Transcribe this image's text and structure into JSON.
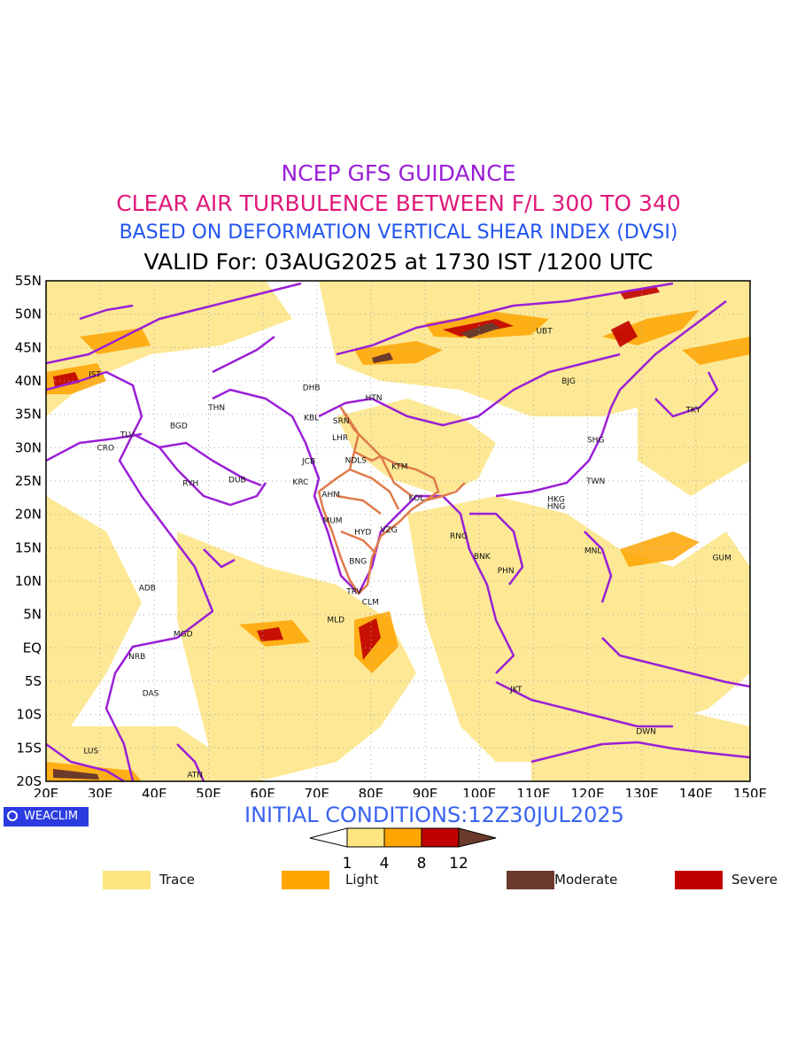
{
  "titles": {
    "line1": "NCEP GFS GUIDANCE",
    "line2": "CLEAR AIR TURBULENCE BETWEEN F/L 300 TO 340",
    "line3": "BASED ON DEFORMATION VERTICAL SHEAR INDEX (DVSI)",
    "line4": "VALID For: 03AUG2025 at 1730 IST /1200 UTC"
  },
  "colors": {
    "title1": "#9a1fd6",
    "title2": "#e0197a",
    "title3": "#2255ee",
    "boundary": "#9a1fd6",
    "india_states": "#e07a4a",
    "trace": "#fde68a",
    "light": "#ffa500",
    "severe": "#c00000",
    "moderate": "#6b3a2a"
  },
  "map": {
    "lon_range": [
      20,
      150
    ],
    "lat_range": [
      -20,
      55
    ],
    "lon_ticks": [
      "20E",
      "30E",
      "40E",
      "50E",
      "60E",
      "70E",
      "80E",
      "90E",
      "100E",
      "110E",
      "120E",
      "130E",
      "140E",
      "150E"
    ],
    "lat_ticks": [
      "55N",
      "50N",
      "45N",
      "40N",
      "35N",
      "30N",
      "25N",
      "20N",
      "15N",
      "10N",
      "5N",
      "EQ",
      "5S",
      "10S",
      "15S",
      "20S"
    ],
    "stations": [
      {
        "code": "UBT",
        "lon": 112,
        "lat": 47.5
      },
      {
        "code": "IST",
        "lon": 29,
        "lat": 41
      },
      {
        "code": "BJG",
        "lon": 116.5,
        "lat": 40
      },
      {
        "code": "DHB",
        "lon": 69,
        "lat": 39
      },
      {
        "code": "HTN",
        "lon": 80.5,
        "lat": 37.5
      },
      {
        "code": "THN",
        "lon": 51.5,
        "lat": 36
      },
      {
        "code": "KBL",
        "lon": 69,
        "lat": 34.5
      },
      {
        "code": "SRN",
        "lon": 74.5,
        "lat": 34
      },
      {
        "code": "TKY",
        "lon": 139.5,
        "lat": 35.7
      },
      {
        "code": "TLV",
        "lon": 35,
        "lat": 32
      },
      {
        "code": "BGD",
        "lon": 44.5,
        "lat": 33.3
      },
      {
        "code": "LHR",
        "lon": 74.3,
        "lat": 31.5
      },
      {
        "code": "SHG",
        "lon": 121.5,
        "lat": 31.2
      },
      {
        "code": "CRO",
        "lon": 31,
        "lat": 30
      },
      {
        "code": "JCB",
        "lon": 68.5,
        "lat": 28
      },
      {
        "code": "NDLS",
        "lon": 77.2,
        "lat": 28.1
      },
      {
        "code": "KTM",
        "lon": 85.3,
        "lat": 27.2
      },
      {
        "code": "RYH",
        "lon": 46.7,
        "lat": 24.7
      },
      {
        "code": "DUB",
        "lon": 55.3,
        "lat": 25.2
      },
      {
        "code": "KRC",
        "lon": 67,
        "lat": 24.9
      },
      {
        "code": "TWN",
        "lon": 121.5,
        "lat": 25
      },
      {
        "code": "AHM",
        "lon": 72.6,
        "lat": 23
      },
      {
        "code": "KOL",
        "lon": 88.4,
        "lat": 22.5
      },
      {
        "code": "MUM",
        "lon": 72.9,
        "lat": 19.1
      },
      {
        "code": "HNG",
        "lon": 114.2,
        "lat": 21.2
      },
      {
        "code": "HKG",
        "lon": 114.2,
        "lat": 22.3
      },
      {
        "code": "HYD",
        "lon": 78.5,
        "lat": 17.4
      },
      {
        "code": "VZG",
        "lon": 83.3,
        "lat": 17.7
      },
      {
        "code": "RNG",
        "lon": 96.2,
        "lat": 16.8
      },
      {
        "code": "MNL",
        "lon": 121,
        "lat": 14.6
      },
      {
        "code": "BNK",
        "lon": 100.5,
        "lat": 13.7
      },
      {
        "code": "GUM",
        "lon": 144.8,
        "lat": 13.5
      },
      {
        "code": "BNG",
        "lon": 77.6,
        "lat": 13
      },
      {
        "code": "PHN",
        "lon": 104.9,
        "lat": 11.6
      },
      {
        "code": "ADB",
        "lon": 38.7,
        "lat": 9
      },
      {
        "code": "TRV",
        "lon": 76.9,
        "lat": 8.5
      },
      {
        "code": "CLM",
        "lon": 79.9,
        "lat": 6.9
      },
      {
        "code": "MLD",
        "lon": 73.5,
        "lat": 4.2
      },
      {
        "code": "MGD",
        "lon": 45.3,
        "lat": 2.1
      },
      {
        "code": "NRB",
        "lon": 36.8,
        "lat": -1.3
      },
      {
        "code": "DAS",
        "lon": 39.3,
        "lat": -6.8
      },
      {
        "code": "JKT",
        "lon": 106.8,
        "lat": -6.2
      },
      {
        "code": "DWN",
        "lon": 130.8,
        "lat": -12.5
      },
      {
        "code": "LUS",
        "lon": 28.3,
        "lat": -15.4
      },
      {
        "code": "ATN",
        "lon": 47.5,
        "lat": -19
      }
    ]
  },
  "badge": "WEACLIM",
  "initial_conditions": "INITIAL CONDITIONS:12Z30JUL2025",
  "colorbar": {
    "labels": [
      "1",
      "4",
      "8",
      "12"
    ],
    "colors": [
      "#ffe680",
      "#ffa500",
      "#c00000",
      "#6b3a2a"
    ]
  },
  "legend": [
    {
      "label": "Trace",
      "color": "#ffe680"
    },
    {
      "label": "Light",
      "color": "#ffa500"
    },
    {
      "label": "Moderate",
      "color": "#6b3a2a"
    },
    {
      "label": "Severe",
      "color": "#c00000"
    }
  ]
}
